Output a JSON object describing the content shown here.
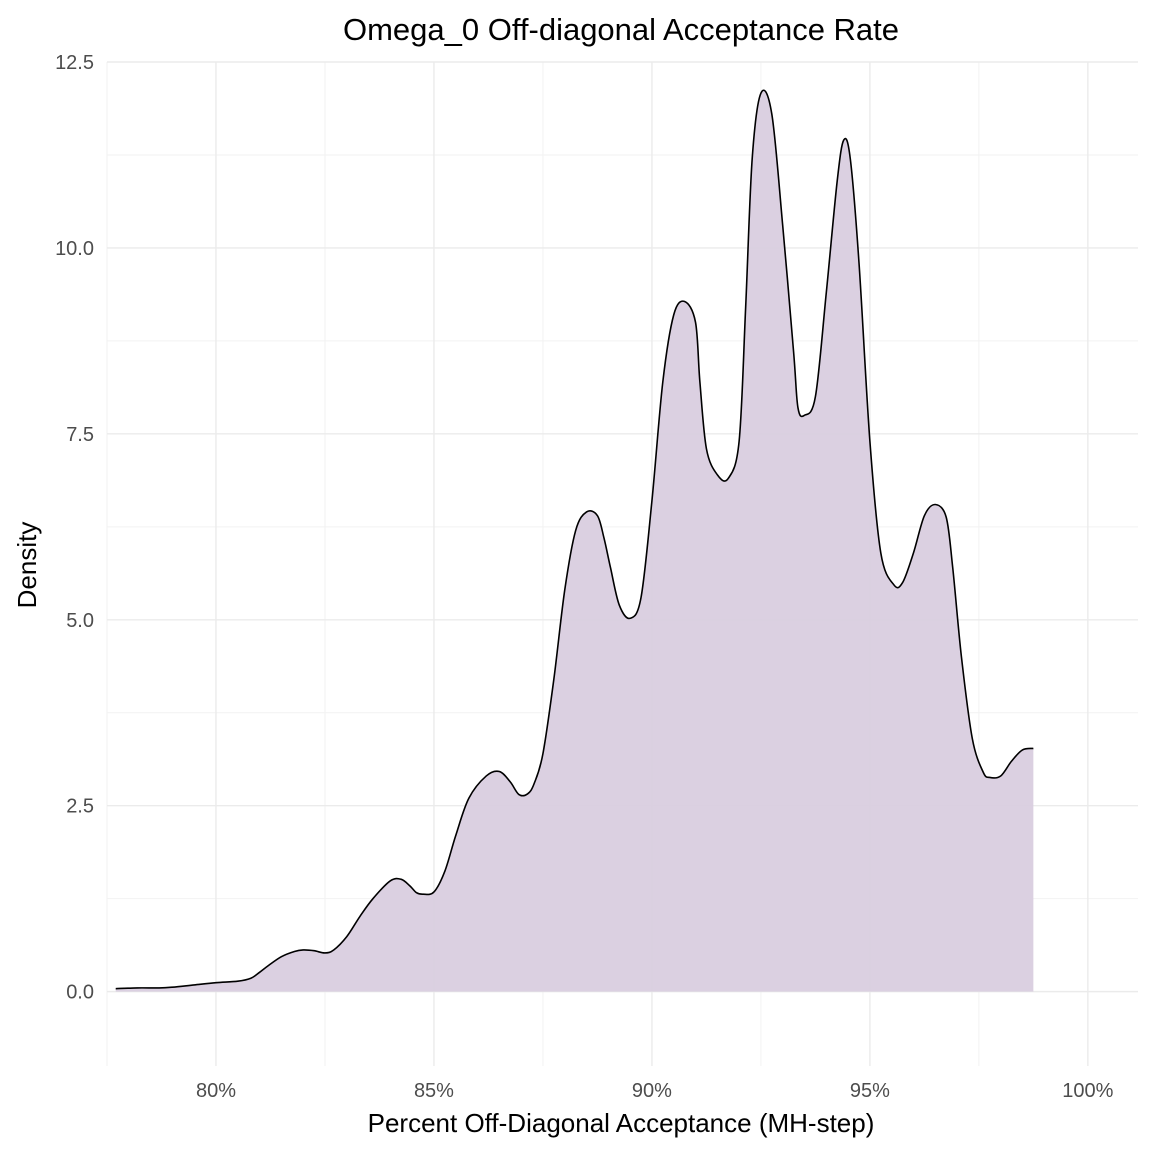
{
  "chart_data": {
    "type": "area",
    "title": "Omega_0 Off-diagonal Acceptance Rate",
    "xlabel": "Percent Off-Diagonal Acceptance (MH-step)",
    "ylabel": "Density",
    "xlim": [
      0.775,
      1.0115
    ],
    "ylim": [
      -1.0,
      12.5
    ],
    "x_ticks": [
      0.8,
      0.85,
      0.9,
      0.95,
      1.0
    ],
    "x_tick_labels": [
      "80%",
      "85%",
      "90%",
      "95%",
      "100%"
    ],
    "y_ticks": [
      0.0,
      2.5,
      5.0,
      7.5,
      10.0,
      12.5
    ],
    "y_tick_labels": [
      "0.0",
      "2.5",
      "5.0",
      "7.5",
      "10.0",
      "12.5"
    ],
    "grid": true,
    "fill_color": "#d9cddf",
    "line_color": "#000000",
    "series": [
      {
        "x": [
          0.777,
          0.782,
          0.787,
          0.79,
          0.795,
          0.8,
          0.805,
          0.808,
          0.81,
          0.812,
          0.815,
          0.818,
          0.82,
          0.8225,
          0.825,
          0.827,
          0.83,
          0.833,
          0.836,
          0.84,
          0.8425,
          0.8445,
          0.846,
          0.8475,
          0.85,
          0.8525,
          0.855,
          0.858,
          0.862,
          0.865,
          0.8675,
          0.8695,
          0.8715,
          0.873,
          0.875,
          0.8775,
          0.88,
          0.8825,
          0.885,
          0.8875,
          0.889,
          0.8905,
          0.8925,
          0.895,
          0.8975,
          0.9,
          0.9025,
          0.905,
          0.9075,
          0.91,
          0.911,
          0.9125,
          0.915,
          0.9175,
          0.92,
          0.9215,
          0.923,
          0.925,
          0.9275,
          0.93,
          0.9325,
          0.9335,
          0.935,
          0.9375,
          0.94,
          0.9425,
          0.944,
          0.9455,
          0.9475,
          0.95,
          0.9525,
          0.9555,
          0.9575,
          0.96,
          0.9625,
          0.965,
          0.9675,
          0.969,
          0.971,
          0.9735,
          0.976,
          0.9775,
          0.98,
          0.9825,
          0.985,
          0.9875,
          0.99,
          0.9925,
          0.995,
          0.9975,
          1.0
        ],
        "y": [
          0.04,
          0.05,
          0.05,
          0.06,
          0.09,
          0.12,
          0.14,
          0.18,
          0.26,
          0.35,
          0.47,
          0.54,
          0.56,
          0.55,
          0.52,
          0.56,
          0.74,
          1.01,
          1.25,
          1.49,
          1.51,
          1.42,
          1.33,
          1.31,
          1.34,
          1.62,
          2.1,
          2.6,
          2.9,
          2.96,
          2.82,
          2.65,
          2.66,
          2.8,
          3.2,
          4.2,
          5.4,
          6.2,
          6.45,
          6.4,
          6.1,
          5.7,
          5.2,
          5.02,
          5.3,
          6.6,
          8.2,
          9.1,
          9.28,
          9.0,
          8.2,
          7.3,
          6.95,
          6.9,
          7.4,
          9.2,
          11.2,
          12.08,
          11.8,
          10.3,
          8.6,
          7.85,
          7.75,
          8.0,
          9.4,
          10.9,
          11.45,
          11.2,
          9.8,
          7.4,
          5.9,
          5.47,
          5.5,
          5.9,
          6.4,
          6.55,
          6.38,
          5.7,
          4.5,
          3.4,
          2.95,
          2.88,
          2.9,
          3.1,
          3.25,
          3.27,
          0,
          0,
          0,
          0,
          0
        ]
      }
    ]
  }
}
